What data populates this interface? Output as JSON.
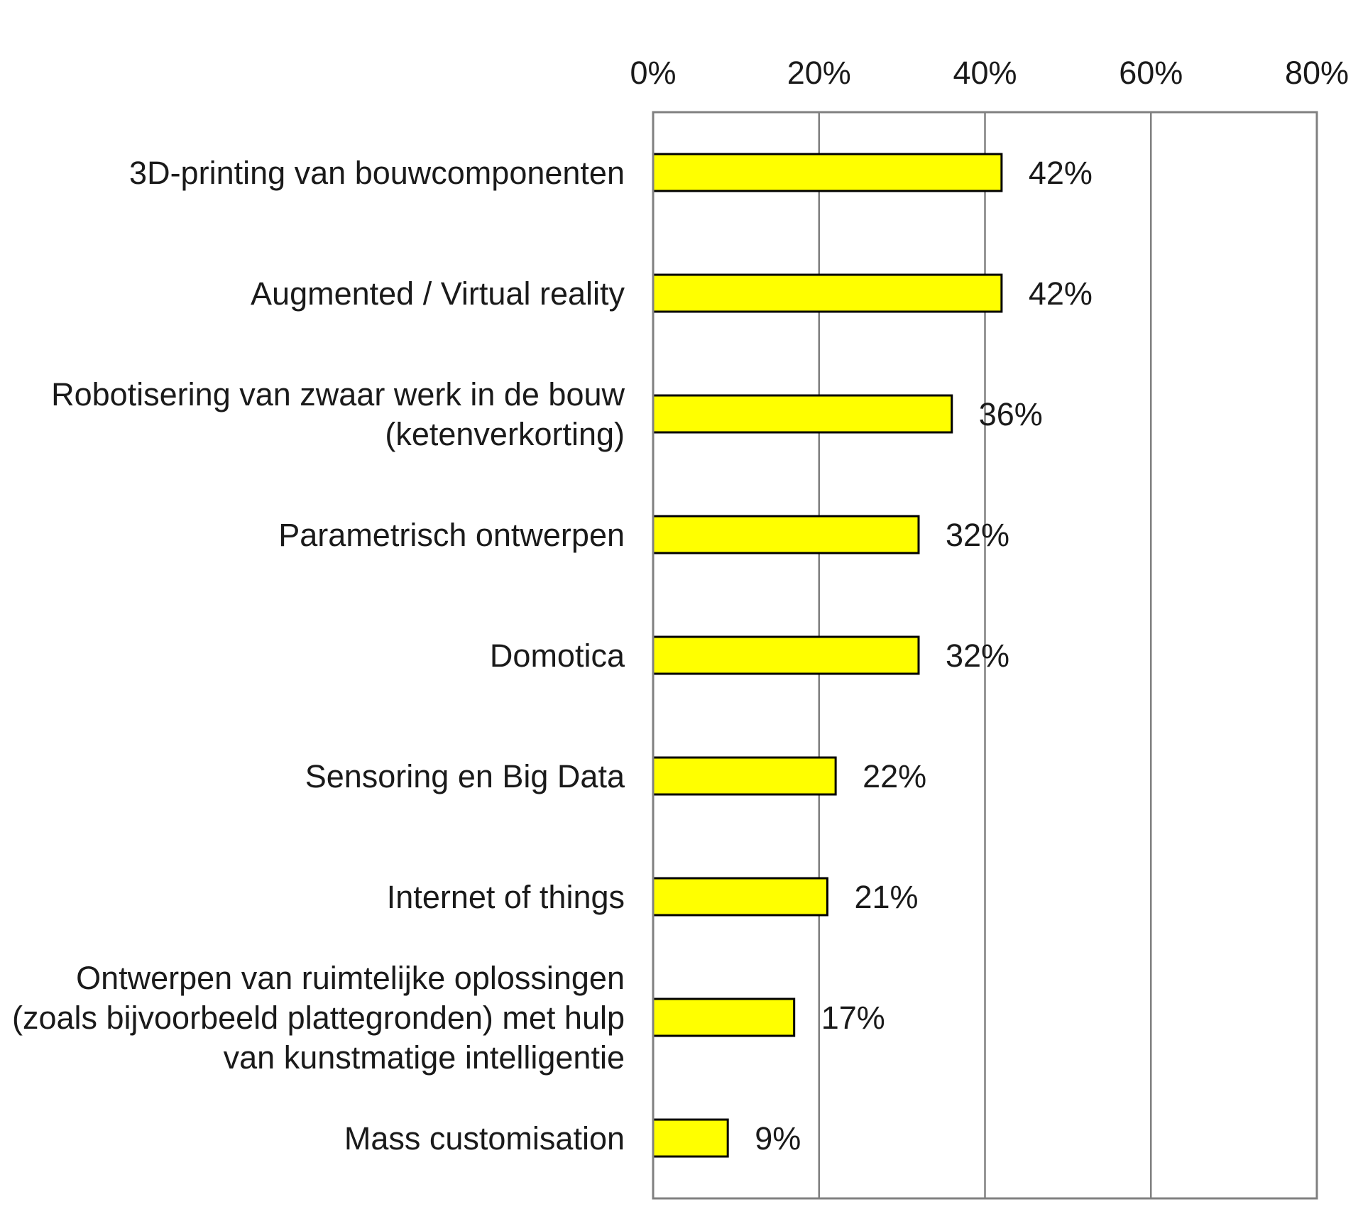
{
  "chart_data": {
    "type": "bar",
    "orientation": "horizontal",
    "categories": [
      "3D-printing van bouwcomponenten",
      "Augmented / Virtual reality",
      "Robotisering van zwaar werk in de bouw (ketenverkorting)",
      "Parametrisch ontwerpen",
      "Domotica",
      "Sensoring en Big Data",
      "Internet of things",
      "Ontwerpen van ruimtelijke oplossingen (zoals bijvoorbeeld plattegronden) met hulp van kunstmatige intelligentie",
      "Mass customisation"
    ],
    "category_lines": [
      [
        "3D-printing van bouwcomponenten"
      ],
      [
        "Augmented / Virtual reality"
      ],
      [
        "Robotisering van zwaar werk in de bouw",
        "(ketenverkorting)"
      ],
      [
        "Parametrisch ontwerpen"
      ],
      [
        "Domotica"
      ],
      [
        "Sensoring en Big Data"
      ],
      [
        "Internet of things"
      ],
      [
        "Ontwerpen van ruimtelijke oplossingen",
        "(zoals bijvoorbeeld plattegronden) met hulp",
        "van kunstmatige intelligentie"
      ],
      [
        "Mass customisation"
      ]
    ],
    "values": [
      42,
      42,
      36,
      32,
      32,
      22,
      21,
      17,
      9
    ],
    "data_labels": [
      "42%",
      "42%",
      "36%",
      "32%",
      "32%",
      "22%",
      "21%",
      "17%",
      "9%"
    ],
    "xticks": [
      "0%",
      "20%",
      "40%",
      "60%",
      "80%"
    ],
    "xtick_values": [
      0,
      20,
      40,
      60,
      80
    ],
    "xlim": [
      0,
      80
    ],
    "axis_position": "top",
    "grid": true,
    "legend": false,
    "bar_color": "#ffff00",
    "bar_edge_color": "#000000",
    "grid_color": "#808080"
  }
}
